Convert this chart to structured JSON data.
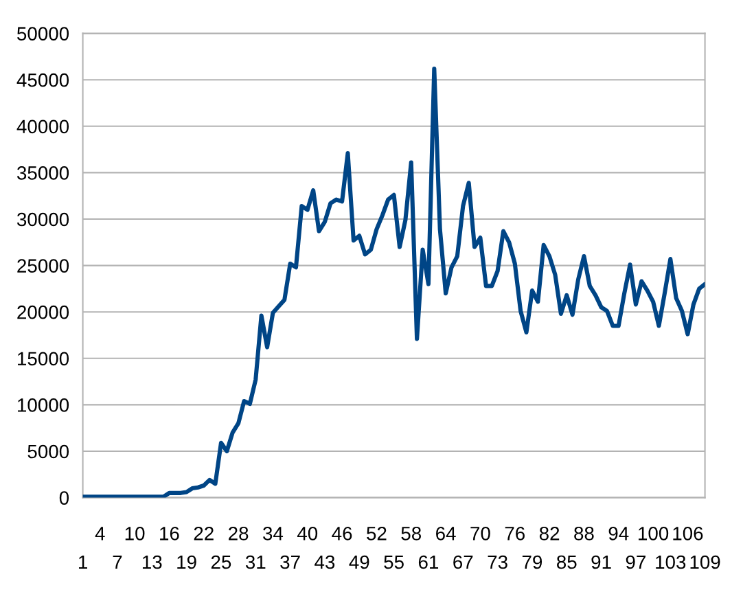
{
  "chart_data": {
    "type": "line",
    "categories": [
      "1",
      null,
      null,
      "4",
      null,
      null,
      "7",
      null,
      null,
      "10",
      null,
      null,
      "13",
      null,
      null,
      "16",
      null,
      null,
      "19",
      null,
      null,
      "22",
      null,
      null,
      "25",
      null,
      null,
      "28",
      null,
      null,
      "31",
      null,
      null,
      "34",
      null,
      null,
      "37",
      null,
      null,
      "40",
      null,
      null,
      "43",
      null,
      null,
      "46",
      null,
      null,
      "49",
      null,
      null,
      "52",
      null,
      null,
      "55",
      null,
      null,
      "58",
      null,
      null,
      "61",
      null,
      null,
      "64",
      null,
      null,
      "67",
      null,
      null,
      "70",
      null,
      null,
      "73",
      null,
      null,
      "76",
      null,
      null,
      "79",
      null,
      null,
      "82",
      null,
      null,
      "85",
      null,
      null,
      "88",
      null,
      null,
      "91",
      null,
      null,
      "94",
      null,
      null,
      "97",
      null,
      null,
      "100",
      null,
      null,
      "103",
      null,
      null,
      "106",
      null,
      null,
      "109"
    ],
    "series": [
      {
        "color": "#004586",
        "values": [
          100,
          100,
          100,
          100,
          100,
          100,
          100,
          100,
          100,
          100,
          100,
          100,
          100,
          100,
          100,
          500,
          500,
          500,
          600,
          1000,
          1100,
          1300,
          1900,
          1500,
          5900,
          5000,
          7000,
          8000,
          10400,
          10100,
          12700,
          19600,
          16200,
          19900,
          20600,
          21300,
          25200,
          24800,
          31400,
          31000,
          33100,
          28700,
          29700,
          31700,
          32100,
          31900,
          37100,
          27700,
          28200,
          26200,
          26700,
          28900,
          30400,
          32100,
          32600,
          27000,
          29900,
          36100,
          17100,
          26700,
          23000,
          46200,
          28900,
          22000,
          24800,
          26000,
          31400,
          33900,
          27000,
          28000,
          22800,
          22800,
          24400,
          28700,
          27500,
          25200,
          20100,
          17800,
          22300,
          21100,
          27200,
          26000,
          24000,
          19800,
          21800,
          19700,
          23500,
          26000,
          22800,
          21800,
          20500,
          20100,
          18500,
          18500,
          22000,
          25100,
          20800,
          23300,
          22300,
          21100,
          18500,
          22000,
          25700,
          21500,
          20100,
          17600,
          20800,
          22500,
          23000
        ]
      }
    ],
    "ylim": [
      0,
      50000
    ],
    "yticks": [
      0,
      5000,
      10000,
      15000,
      20000,
      25000,
      30000,
      35000,
      40000,
      45000,
      50000
    ],
    "grid": "y"
  }
}
